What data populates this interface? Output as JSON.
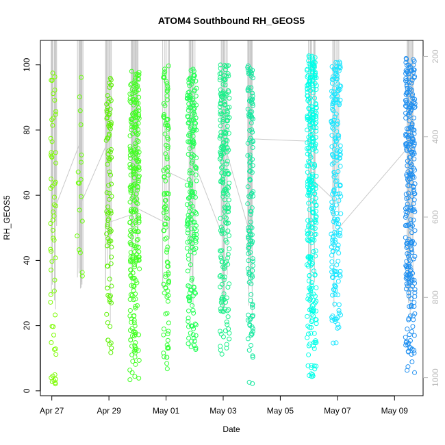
{
  "chart_data": {
    "type": "scatter",
    "title": "ATOM4 Southbound RH_GEOS5",
    "xlabel": "Date",
    "ylabel": "RH_GEOS5",
    "x_unit": "days since Apr 27",
    "xlim": [
      -0.4,
      13.0
    ],
    "ylim": [
      -1.5,
      107.5
    ],
    "x_ticks": [
      {
        "value": 0,
        "label": "Apr 27"
      },
      {
        "value": 2,
        "label": "Apr 29"
      },
      {
        "value": 4,
        "label": "May 01"
      },
      {
        "value": 6,
        "label": "May 03"
      },
      {
        "value": 8,
        "label": "May 05"
      },
      {
        "value": 10,
        "label": "May 07"
      },
      {
        "value": 12,
        "label": "May 09"
      }
    ],
    "y_ticks": [
      0,
      20,
      40,
      60,
      80,
      100
    ],
    "right_axis": {
      "label": "",
      "ticks": [
        200,
        400,
        600,
        800,
        1000
      ],
      "ylim": [
        1045,
        160
      ],
      "color": "#b8b8b8"
    },
    "grid": false,
    "legend": "none",
    "point_style": "open-circle",
    "flight_track_color": "#c8c8c8",
    "flights": [
      {
        "x": 0.05,
        "color": "#7cfc00",
        "rh_min": 2,
        "rh_max": 98,
        "n": 60,
        "low_cluster": [
          2,
          5
        ]
      },
      {
        "x": 0.98,
        "color": "#66ff00",
        "rh_min": 30,
        "rh_max": 100,
        "n": 18
      },
      {
        "x": 2.0,
        "color": "#5af000",
        "rh_min": 10,
        "rh_max": 96,
        "n": 90
      },
      {
        "x": 2.9,
        "color": "#40ff20",
        "rh_min": 3,
        "rh_max": 100,
        "n": 260
      },
      {
        "x": 4.0,
        "color": "#33ff33",
        "rh_min": 6,
        "rh_max": 100,
        "n": 110
      },
      {
        "x": 4.9,
        "color": "#22ff55",
        "rh_min": 12,
        "rh_max": 99,
        "n": 210
      },
      {
        "x": 6.05,
        "color": "#1cf08a",
        "rh_min": 10,
        "rh_max": 100,
        "n": 220
      },
      {
        "x": 6.95,
        "color": "#18e8a0",
        "rh_min": 1,
        "rh_max": 100,
        "n": 140
      },
      {
        "x": 9.1,
        "color": "#00ffe8",
        "rh_min": 3,
        "rh_max": 103,
        "n": 300
      },
      {
        "x": 9.95,
        "color": "#1ae6ff",
        "rh_min": 13,
        "rh_max": 101,
        "n": 200
      },
      {
        "x": 12.55,
        "color": "#1f8ff0",
        "rh_min": 5,
        "rh_max": 102,
        "n": 280
      }
    ]
  }
}
